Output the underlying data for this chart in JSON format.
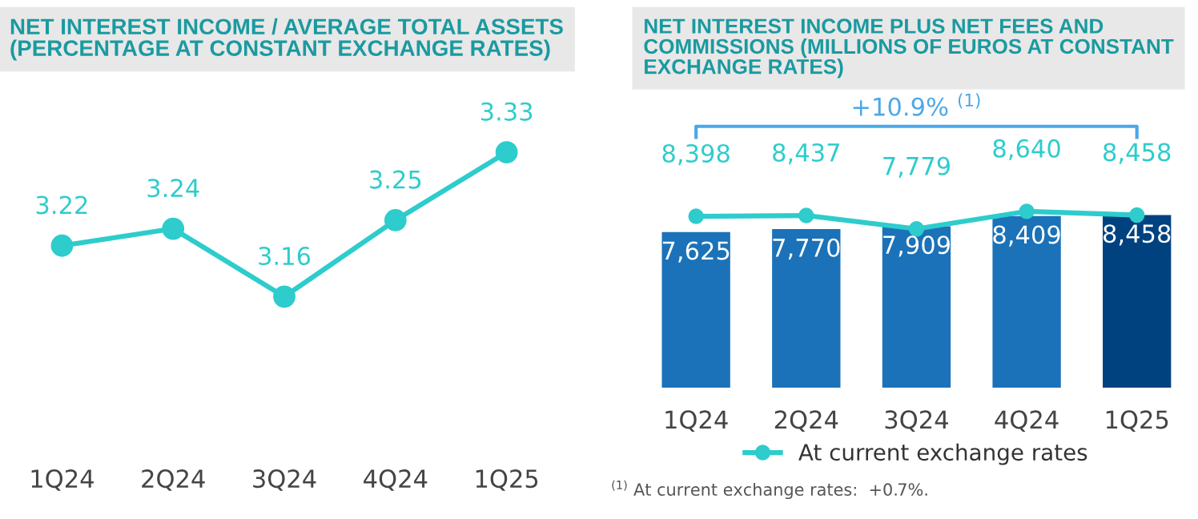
{
  "chart_data": [
    {
      "type": "line",
      "title": "NET INTEREST INCOME / AVERAGE TOTAL ASSETS\n(PERCENTAGE AT CONSTANT EXCHANGE RATES)",
      "categories": [
        "1Q24",
        "2Q24",
        "3Q24",
        "4Q24",
        "1Q25"
      ],
      "series": [
        {
          "color": "#2ecccc",
          "values": [
            3.22,
            3.24,
            3.16,
            3.25,
            3.33
          ]
        }
      ],
      "tick_labels": "x",
      "data_labels": true,
      "marker": "circle",
      "grid": false,
      "legend": false
    },
    {
      "type": "bar",
      "title": "NET INTEREST INCOME PLUS NET FEES AND\nCOMMISSIONS (MILLIONS OF EUROS AT CONSTANT\nEXCHANGE RATES)",
      "categories": [
        "1Q24",
        "2Q24",
        "3Q24",
        "4Q24",
        "1Q25"
      ],
      "series": [
        {
          "type": "bar",
          "colors": [
            "#1b72b8",
            "#1b72b8",
            "#1b72b8",
            "#1b72b8",
            "#00427f"
          ],
          "values": [
            7625,
            7770,
            7909,
            8409,
            8458
          ],
          "value_labels": [
            "7,625",
            "7,770",
            "7,909",
            "8,409",
            "8,458"
          ]
        },
        {
          "type": "line",
          "name": "At current exchange rates",
          "color": "#2ecccc",
          "values": [
            8398,
            8437,
            7779,
            8640,
            8458
          ],
          "value_labels": [
            "8,398",
            "8,437",
            "7,779",
            "8,640",
            "8,458"
          ]
        }
      ],
      "tick_labels": "x",
      "marker": "circle",
      "grid": false,
      "legend": "bottom",
      "annotations": [
        "+10.9% $^{(1)}$",
        "$^{(1)}$ At current exchange rates:  +0.7%."
      ]
    }
  ]
}
